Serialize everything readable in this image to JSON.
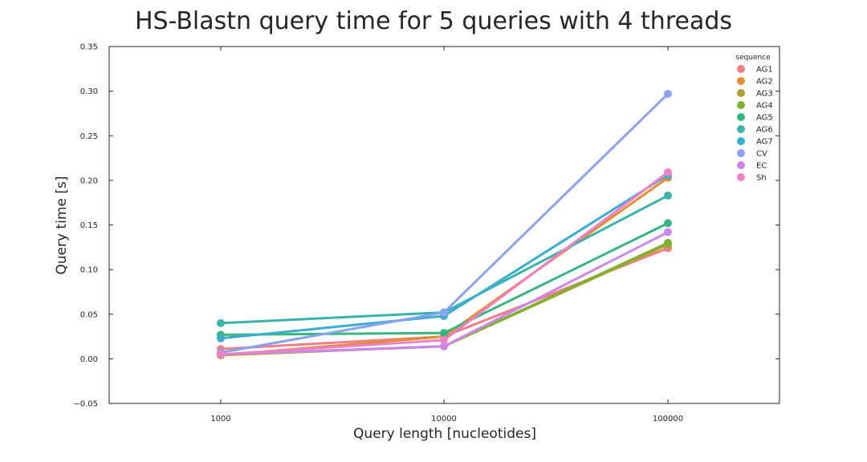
{
  "chart_data": {
    "type": "line",
    "title": "HS-Blastn query time for 5 queries with 4 threads",
    "xlabel": "Query length [nucleotides]",
    "ylabel": "Query time [s]",
    "categories": [
      "1000",
      "10000",
      "100000"
    ],
    "ylim": [
      -0.05,
      0.35
    ],
    "yticks": [
      "−0.05",
      "0.00",
      "0.05",
      "0.10",
      "0.15",
      "0.20",
      "0.25",
      "0.30",
      "0.35"
    ],
    "ytick_values": [
      -0.05,
      0.0,
      0.05,
      0.1,
      0.15,
      0.2,
      0.25,
      0.3,
      0.35
    ],
    "grid": false,
    "legend": {
      "title": "sequence",
      "placement": "top-right"
    },
    "series": [
      {
        "name": "AG1",
        "color": "#f07f86",
        "values": [
          0.011,
          0.025,
          0.124
        ]
      },
      {
        "name": "AG2",
        "color": "#e38c30",
        "values": [
          0.004,
          0.025,
          0.203
        ]
      },
      {
        "name": "AG3",
        "color": "#b2a233",
        "values": [
          0.004,
          0.014,
          0.128
        ]
      },
      {
        "name": "AG4",
        "color": "#7eb031",
        "values": [
          0.005,
          0.014,
          0.13
        ]
      },
      {
        "name": "AG5",
        "color": "#37b77f",
        "values": [
          0.027,
          0.029,
          0.152
        ]
      },
      {
        "name": "AG6",
        "color": "#3ab4ab",
        "values": [
          0.04,
          0.052,
          0.183
        ]
      },
      {
        "name": "AG7",
        "color": "#3aaed0",
        "values": [
          0.023,
          0.048,
          0.206
        ]
      },
      {
        "name": "CV",
        "color": "#8aa3f0",
        "values": [
          0.007,
          0.052,
          0.297
        ]
      },
      {
        "name": "EC",
        "color": "#cc86ee",
        "values": [
          0.005,
          0.014,
          0.142
        ]
      },
      {
        "name": "Sh",
        "color": "#ee80c8",
        "values": [
          0.005,
          0.021,
          0.209
        ]
      }
    ]
  }
}
